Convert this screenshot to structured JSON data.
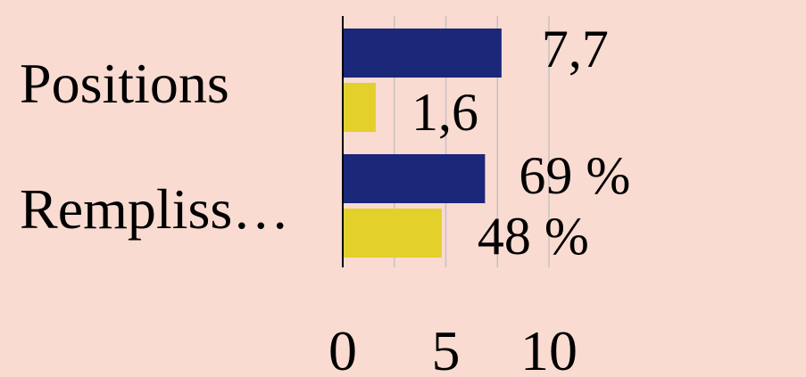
{
  "chart_data": {
    "type": "bar",
    "orientation": "horizontal",
    "categories": [
      "Positions",
      "Rempliss…"
    ],
    "series": [
      {
        "color": "#1b2779",
        "values": [
          7.7,
          6.9
        ],
        "labels": [
          "7,7",
          "69 %"
        ]
      },
      {
        "color": "#e3d02a",
        "values": [
          1.6,
          4.8
        ],
        "labels": [
          "1,6",
          "48 %"
        ]
      }
    ],
    "xlim": [
      0,
      10
    ],
    "xticks": [
      {
        "value": 0,
        "label": "0"
      },
      {
        "value": 5,
        "label": "5"
      },
      {
        "value": 10,
        "label": "10"
      }
    ],
    "grid": true,
    "background": "#fadbd2"
  }
}
